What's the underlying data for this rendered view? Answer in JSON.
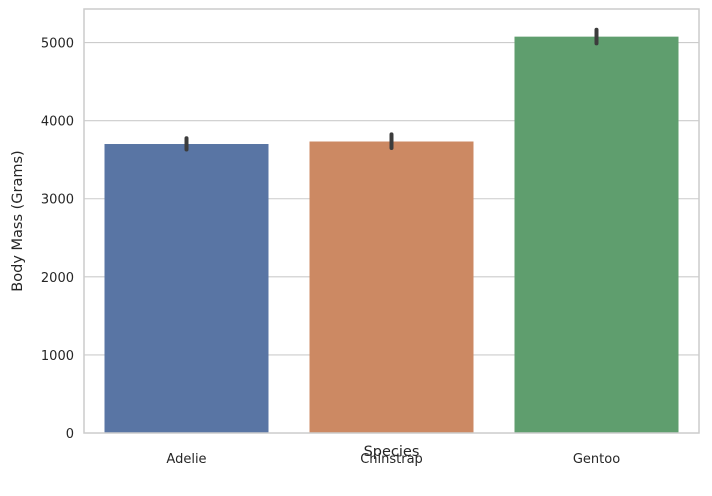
{
  "chart_data": {
    "type": "bar",
    "title": "",
    "xlabel": "Species",
    "ylabel": "Body Mass (Grams)",
    "categories": [
      "Adelie",
      "Chinstrap",
      "Gentoo"
    ],
    "values": [
      3701,
      3733,
      5076
    ],
    "error_bars": [
      [
        3630,
        3775
      ],
      [
        3650,
        3825
      ],
      [
        4990,
        5165
      ]
    ],
    "colors": [
      "#5975a4",
      "#cc8963",
      "#5f9e6e"
    ],
    "errorbar_color": "#3c3c3c",
    "ylim": [
      0,
      5430
    ],
    "yticks": [
      0,
      1000,
      2000,
      3000,
      4000,
      5000
    ],
    "ytick_labels": [
      "0",
      "1000",
      "2000",
      "3000",
      "4000",
      "5000"
    ],
    "grid": "horizontal",
    "legend": "none",
    "style": {
      "background": "#ffffff",
      "grid_color": "#cccccc",
      "spine_color": "#cccccc"
    }
  }
}
